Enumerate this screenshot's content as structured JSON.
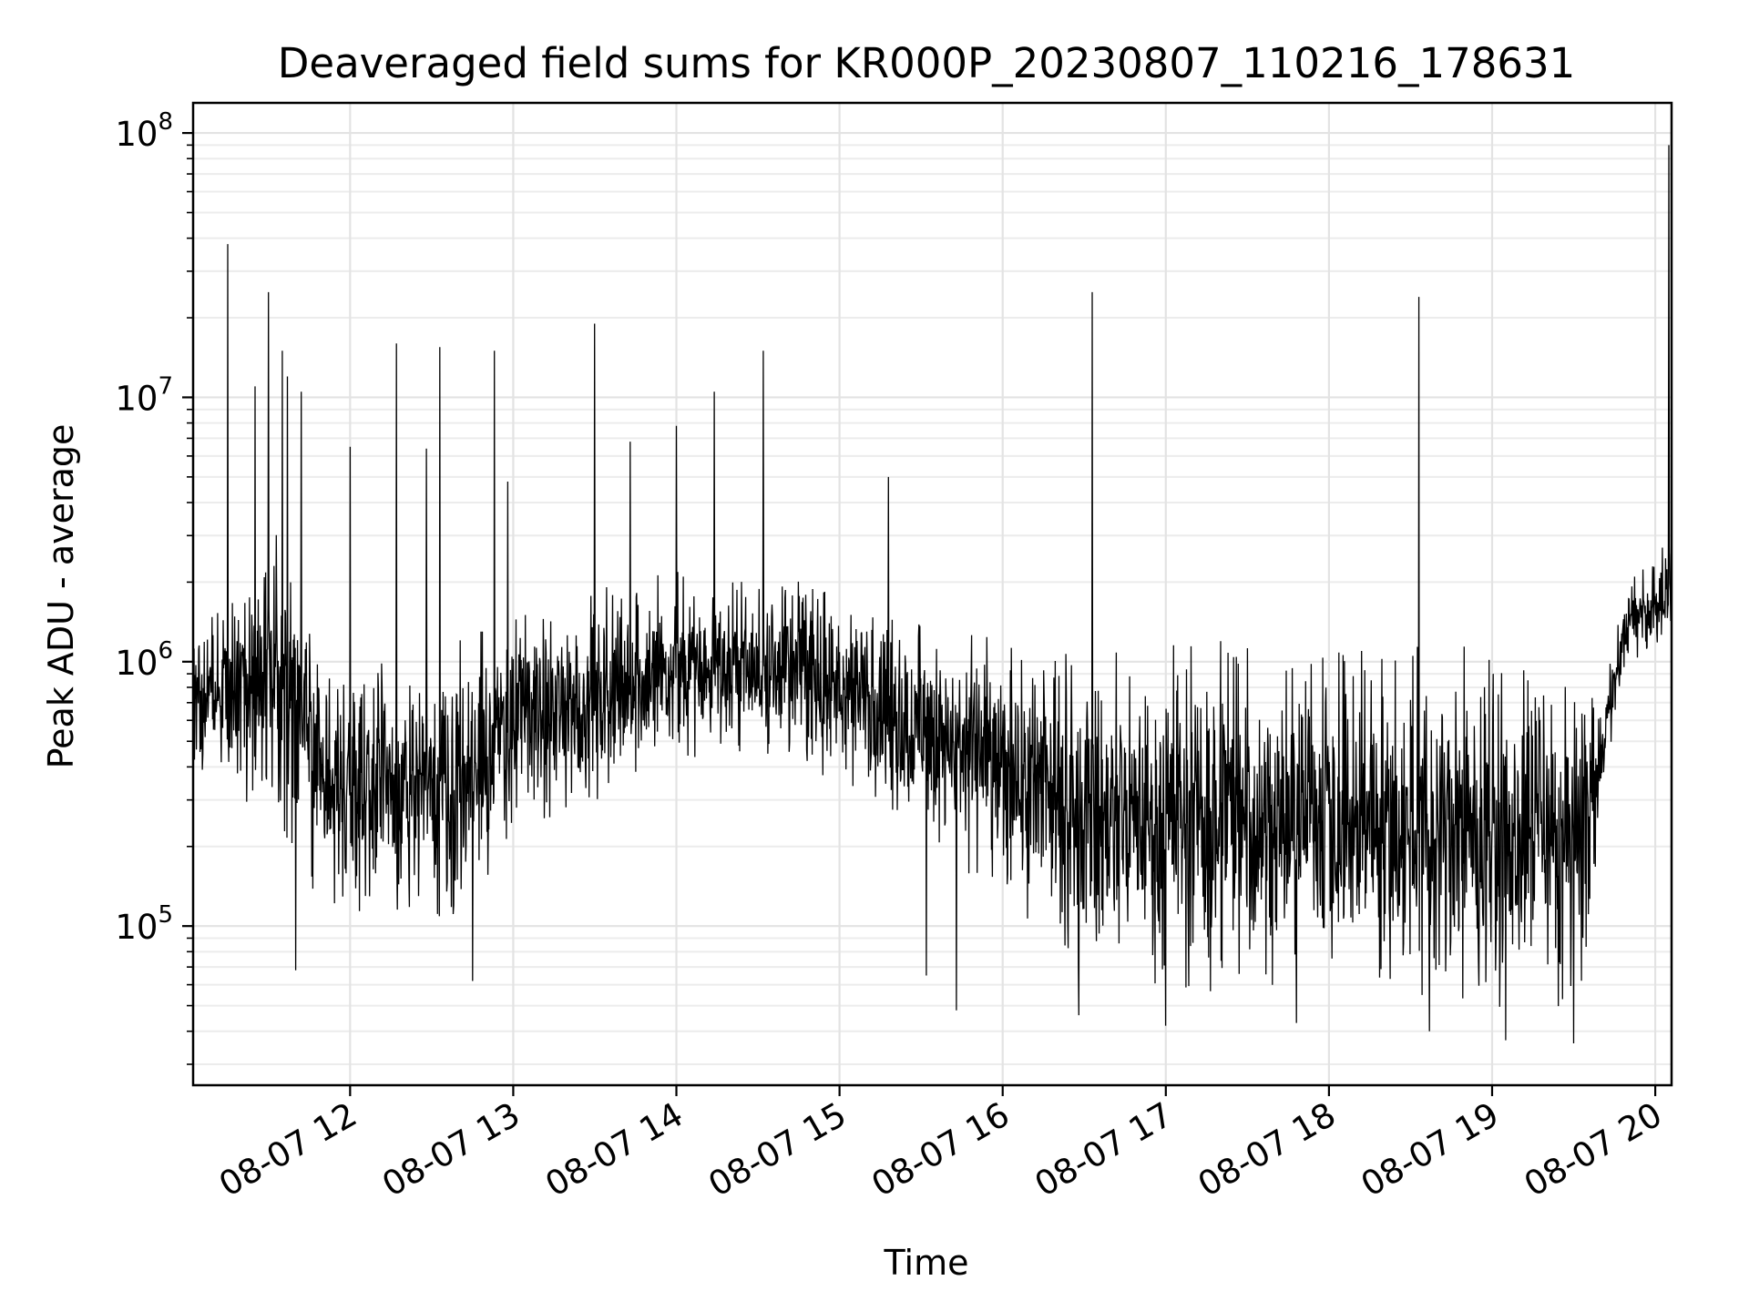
{
  "chart_data": {
    "type": "line",
    "title": "Deaveraged field sums for KR000P_20230807_110216_178631",
    "xlabel": "Time",
    "ylabel": "Peak ADU - average",
    "yscale": "log",
    "ylim": [
      25000,
      130000000
    ],
    "xlim": [
      "2023-08-07 11:02:16",
      "2023-08-07 20:06:00"
    ],
    "grid": true,
    "legend": "none",
    "line_color": "#000000",
    "x_ticks": [
      {
        "label": "08-07 12",
        "value": "2023-08-07 12:00"
      },
      {
        "label": "08-07 13",
        "value": "2023-08-07 13:00"
      },
      {
        "label": "08-07 14",
        "value": "2023-08-07 14:00"
      },
      {
        "label": "08-07 15",
        "value": "2023-08-07 15:00"
      },
      {
        "label": "08-07 16",
        "value": "2023-08-07 16:00"
      },
      {
        "label": "08-07 17",
        "value": "2023-08-07 17:00"
      },
      {
        "label": "08-07 18",
        "value": "2023-08-07 18:00"
      },
      {
        "label": "08-07 19",
        "value": "2023-08-07 19:00"
      },
      {
        "label": "08-07 20",
        "value": "2023-08-07 20:00"
      }
    ],
    "y_ticks": [
      {
        "base": "10",
        "exp": "5",
        "value": 100000
      },
      {
        "base": "10",
        "exp": "6",
        "value": 1000000
      },
      {
        "base": "10",
        "exp": "7",
        "value": 10000000
      },
      {
        "base": "10",
        "exp": "8",
        "value": 100000000
      }
    ],
    "series": [
      {
        "envelope": [
          {
            "x": "2023-08-07 11:02",
            "low": 300000,
            "high": 1400000
          },
          {
            "x": "2023-08-07 11:10",
            "low": 400000,
            "high": 1500000
          },
          {
            "x": "2023-08-07 11:20",
            "low": 250000,
            "high": 2500000
          },
          {
            "x": "2023-08-07 11:30",
            "low": 300000,
            "high": 4000000
          },
          {
            "x": "2023-08-07 11:40",
            "low": 150000,
            "high": 3000000
          },
          {
            "x": "2023-08-07 11:50",
            "low": 120000,
            "high": 1000000
          },
          {
            "x": "2023-08-07 12:00",
            "low": 100000,
            "high": 1000000
          },
          {
            "x": "2023-08-07 12:20",
            "low": 100000,
            "high": 1100000
          },
          {
            "x": "2023-08-07 12:40",
            "low": 90000,
            "high": 1200000
          },
          {
            "x": "2023-08-07 13:00",
            "low": 200000,
            "high": 1600000
          },
          {
            "x": "2023-08-07 13:20",
            "low": 250000,
            "high": 1800000
          },
          {
            "x": "2023-08-07 13:40",
            "low": 350000,
            "high": 2000000
          },
          {
            "x": "2023-08-07 14:00",
            "low": 400000,
            "high": 2200000
          },
          {
            "x": "2023-08-07 14:20",
            "low": 450000,
            "high": 2200000
          },
          {
            "x": "2023-08-07 14:40",
            "low": 400000,
            "high": 2200000
          },
          {
            "x": "2023-08-07 15:00",
            "low": 350000,
            "high": 2000000
          },
          {
            "x": "2023-08-07 15:20",
            "low": 250000,
            "high": 1600000
          },
          {
            "x": "2023-08-07 15:40",
            "low": 180000,
            "high": 1400000
          },
          {
            "x": "2023-08-07 16:00",
            "low": 120000,
            "high": 1300000
          },
          {
            "x": "2023-08-07 16:20",
            "low": 70000,
            "high": 1200000
          },
          {
            "x": "2023-08-07 16:40",
            "low": 60000,
            "high": 1200000
          },
          {
            "x": "2023-08-07 17:00",
            "low": 55000,
            "high": 1200000
          },
          {
            "x": "2023-08-07 17:20",
            "low": 55000,
            "high": 1200000
          },
          {
            "x": "2023-08-07 17:40",
            "low": 55000,
            "high": 1200000
          },
          {
            "x": "2023-08-07 18:00",
            "low": 55000,
            "high": 1200000
          },
          {
            "x": "2023-08-07 18:20",
            "low": 55000,
            "high": 1200000
          },
          {
            "x": "2023-08-07 18:40",
            "low": 50000,
            "high": 1200000
          },
          {
            "x": "2023-08-07 19:00",
            "low": 50000,
            "high": 1100000
          },
          {
            "x": "2023-08-07 19:20",
            "low": 45000,
            "high": 900000
          },
          {
            "x": "2023-08-07 19:35",
            "low": 60000,
            "high": 800000
          },
          {
            "x": "2023-08-07 19:42",
            "low": 400000,
            "high": 900000
          },
          {
            "x": "2023-08-07 19:50",
            "low": 1000000,
            "high": 2000000
          },
          {
            "x": "2023-08-07 20:00",
            "low": 1100000,
            "high": 2500000
          },
          {
            "x": "2023-08-07 20:06",
            "low": 1200000,
            "high": 3000000
          }
        ],
        "spikes": [
          {
            "x": "2023-08-07 11:15",
            "y": 38000000
          },
          {
            "x": "2023-08-07 11:30",
            "y": 25000000
          },
          {
            "x": "2023-08-07 11:35",
            "y": 15000000
          },
          {
            "x": "2023-08-07 11:25",
            "y": 11000000
          },
          {
            "x": "2023-08-07 11:37",
            "y": 12000000
          },
          {
            "x": "2023-08-07 11:42",
            "y": 10500000
          },
          {
            "x": "2023-08-07 12:00",
            "y": 6500000
          },
          {
            "x": "2023-08-07 12:17",
            "y": 16000000
          },
          {
            "x": "2023-08-07 12:28",
            "y": 6400000
          },
          {
            "x": "2023-08-07 12:33",
            "y": 15500000
          },
          {
            "x": "2023-08-07 12:53",
            "y": 15000000
          },
          {
            "x": "2023-08-07 12:58",
            "y": 4800000
          },
          {
            "x": "2023-08-07 13:30",
            "y": 19000000
          },
          {
            "x": "2023-08-07 13:43",
            "y": 6800000
          },
          {
            "x": "2023-08-07 14:00",
            "y": 7800000
          },
          {
            "x": "2023-08-07 14:14",
            "y": 10500000
          },
          {
            "x": "2023-08-07 14:32",
            "y": 15000000
          },
          {
            "x": "2023-08-07 15:18",
            "y": 5000000
          },
          {
            "x": "2023-08-07 16:33",
            "y": 25000000
          },
          {
            "x": "2023-08-07 18:33",
            "y": 24000000
          },
          {
            "x": "2023-08-07 20:05",
            "y": 90000000
          }
        ],
        "dips": [
          {
            "x": "2023-08-07 11:40",
            "y": 68000.0
          },
          {
            "x": "2023-08-07 12:45",
            "y": 62000
          },
          {
            "x": "2023-08-07 15:32",
            "y": 65000
          },
          {
            "x": "2023-08-07 15:43",
            "y": 48000
          },
          {
            "x": "2023-08-07 16:28",
            "y": 46000
          },
          {
            "x": "2023-08-07 17:00",
            "y": 42000
          },
          {
            "x": "2023-08-07 17:48",
            "y": 43000
          },
          {
            "x": "2023-08-07 18:37",
            "y": 40000
          },
          {
            "x": "2023-08-07 19:05",
            "y": 37000
          },
          {
            "x": "2023-08-07 19:30",
            "y": 36000
          }
        ]
      }
    ]
  }
}
